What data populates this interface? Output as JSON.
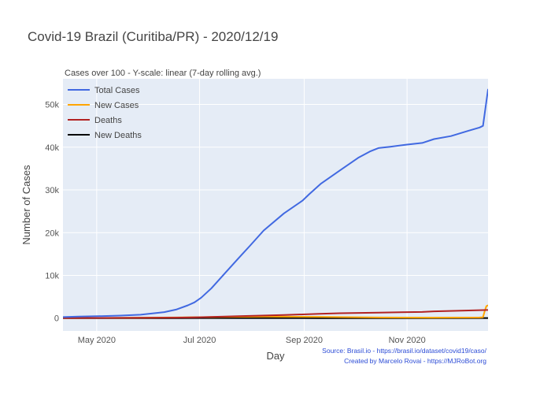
{
  "chart_data": {
    "type": "line",
    "title": "Covid-19 Brazil (Curitiba/PR) - 2020/12/19",
    "subtitle": "Cases over 100 - Y-scale: linear (7-day rolling avg.)",
    "xlabel": "Day",
    "ylabel": "Number of Cases",
    "x_range": [
      "2020-04-11",
      "2020-12-19"
    ],
    "ylim": [
      -3000,
      56000
    ],
    "y_ticks": [
      0,
      10000,
      20000,
      30000,
      40000,
      50000
    ],
    "y_tick_labels": [
      "0",
      "10k",
      "20k",
      "30k",
      "40k",
      "50k"
    ],
    "x_ticks": [
      "2020-05-01",
      "2020-07-01",
      "2020-09-01",
      "2020-11-01"
    ],
    "x_tick_labels": [
      "May 2020",
      "Jul 2020",
      "Sep 2020",
      "Nov 2020"
    ],
    "grid": true,
    "legend_position": "top-left",
    "background_color": "#e5ecf6",
    "series": [
      {
        "name": "Total Cases",
        "color": "#4169e1",
        "points": [
          [
            "2020-04-07",
            200
          ],
          [
            "2020-04-20",
            350
          ],
          [
            "2020-05-01",
            450
          ],
          [
            "2020-05-15",
            600
          ],
          [
            "2020-05-27",
            800
          ],
          [
            "2020-06-10",
            1400
          ],
          [
            "2020-06-17",
            2000
          ],
          [
            "2020-06-24",
            3000
          ],
          [
            "2020-06-28",
            3700
          ],
          [
            "2020-07-02",
            4800
          ],
          [
            "2020-07-08",
            7000
          ],
          [
            "2020-07-16",
            10500
          ],
          [
            "2020-07-24",
            14000
          ],
          [
            "2020-07-31",
            17000
          ],
          [
            "2020-08-08",
            20500
          ],
          [
            "2020-08-20",
            24500
          ],
          [
            "2020-08-31",
            27500
          ],
          [
            "2020-09-04",
            29000
          ],
          [
            "2020-09-11",
            31500
          ],
          [
            "2020-09-22",
            34500
          ],
          [
            "2020-10-03",
            37500
          ],
          [
            "2020-10-10",
            39000
          ],
          [
            "2020-10-15",
            39800
          ],
          [
            "2020-10-22",
            40100
          ],
          [
            "2020-11-01",
            40600
          ],
          [
            "2020-11-10",
            41000
          ],
          [
            "2020-11-17",
            41900
          ],
          [
            "2020-11-27",
            42600
          ],
          [
            "2020-12-07",
            43800
          ],
          [
            "2020-12-14",
            44600
          ],
          [
            "2020-12-16",
            45000
          ],
          [
            "2020-12-19",
            53500
          ]
        ]
      },
      {
        "name": "New Cases",
        "color": "#ffa500",
        "points": [
          [
            "2020-04-07",
            30
          ],
          [
            "2020-05-15",
            60
          ],
          [
            "2020-06-17",
            150
          ],
          [
            "2020-07-16",
            300
          ],
          [
            "2020-08-10",
            350
          ],
          [
            "2020-09-10",
            300
          ],
          [
            "2020-10-15",
            150
          ],
          [
            "2020-11-15",
            120
          ],
          [
            "2020-12-14",
            150
          ],
          [
            "2020-12-16",
            200
          ],
          [
            "2020-12-17",
            1600
          ],
          [
            "2020-12-18",
            2800
          ],
          [
            "2020-12-19",
            3000
          ]
        ]
      },
      {
        "name": "Deaths",
        "color": "#b22222",
        "points": [
          [
            "2020-04-07",
            20
          ],
          [
            "2020-05-15",
            60
          ],
          [
            "2020-06-17",
            120
          ],
          [
            "2020-07-01",
            200
          ],
          [
            "2020-07-24",
            450
          ],
          [
            "2020-08-20",
            750
          ],
          [
            "2020-09-10",
            1000
          ],
          [
            "2020-09-22",
            1150
          ],
          [
            "2020-10-15",
            1300
          ],
          [
            "2020-11-10",
            1450
          ],
          [
            "2020-11-17",
            1600
          ],
          [
            "2020-12-19",
            1900
          ]
        ]
      },
      {
        "name": "New Deaths",
        "color": "#000000",
        "points": [
          [
            "2020-04-07",
            2
          ],
          [
            "2020-06-17",
            5
          ],
          [
            "2020-07-20",
            15
          ],
          [
            "2020-09-10",
            12
          ],
          [
            "2020-11-10",
            8
          ],
          [
            "2020-12-19",
            15
          ]
        ]
      }
    ],
    "annotations": [
      "Source: Brasil.io - https://brasil.io/dataset/covid19/caso/",
      "Created by Marcelo Rovai - https://MJRoBot.org"
    ]
  }
}
